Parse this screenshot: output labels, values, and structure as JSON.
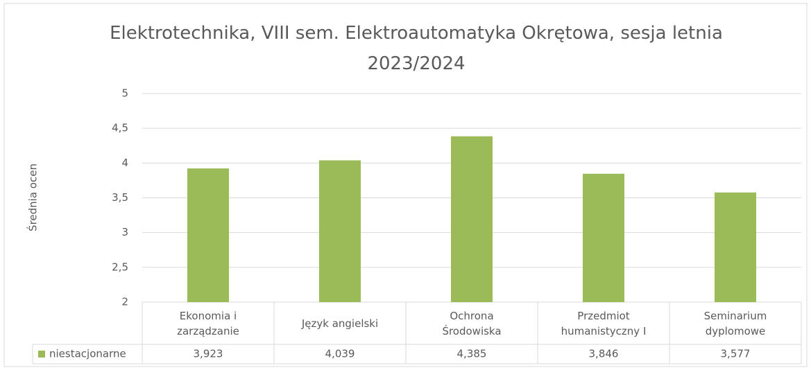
{
  "chart_data": {
    "type": "bar",
    "title": "Elektrotechnika, VIII sem. Elektroautomatyka Okrętowa, sesja letnia 2023/2024",
    "y_label": "Średnia ocen",
    "categories": [
      "Ekonomia i zarządzanie",
      "Język angielski",
      "Ochrona Środowiska",
      "Przedmiot humanistyczny I",
      "Seminarium dyplomowe"
    ],
    "series": [
      {
        "name": "niestacjonarne",
        "color": "#9bbb59",
        "values": [
          3.923,
          4.039,
          4.385,
          3.846,
          3.577
        ],
        "value_labels": [
          "3,923",
          "4,039",
          "4,385",
          "3,846",
          "3,577"
        ]
      }
    ],
    "ylim": [
      2,
      5
    ],
    "yticks": [
      2,
      {
        "value": 2.5,
        "label": "2,5"
      },
      3,
      {
        "value": 3.5,
        "label": "3,5"
      },
      4,
      {
        "value": 4.5,
        "label": "4,5"
      },
      5
    ],
    "grid": true
  }
}
